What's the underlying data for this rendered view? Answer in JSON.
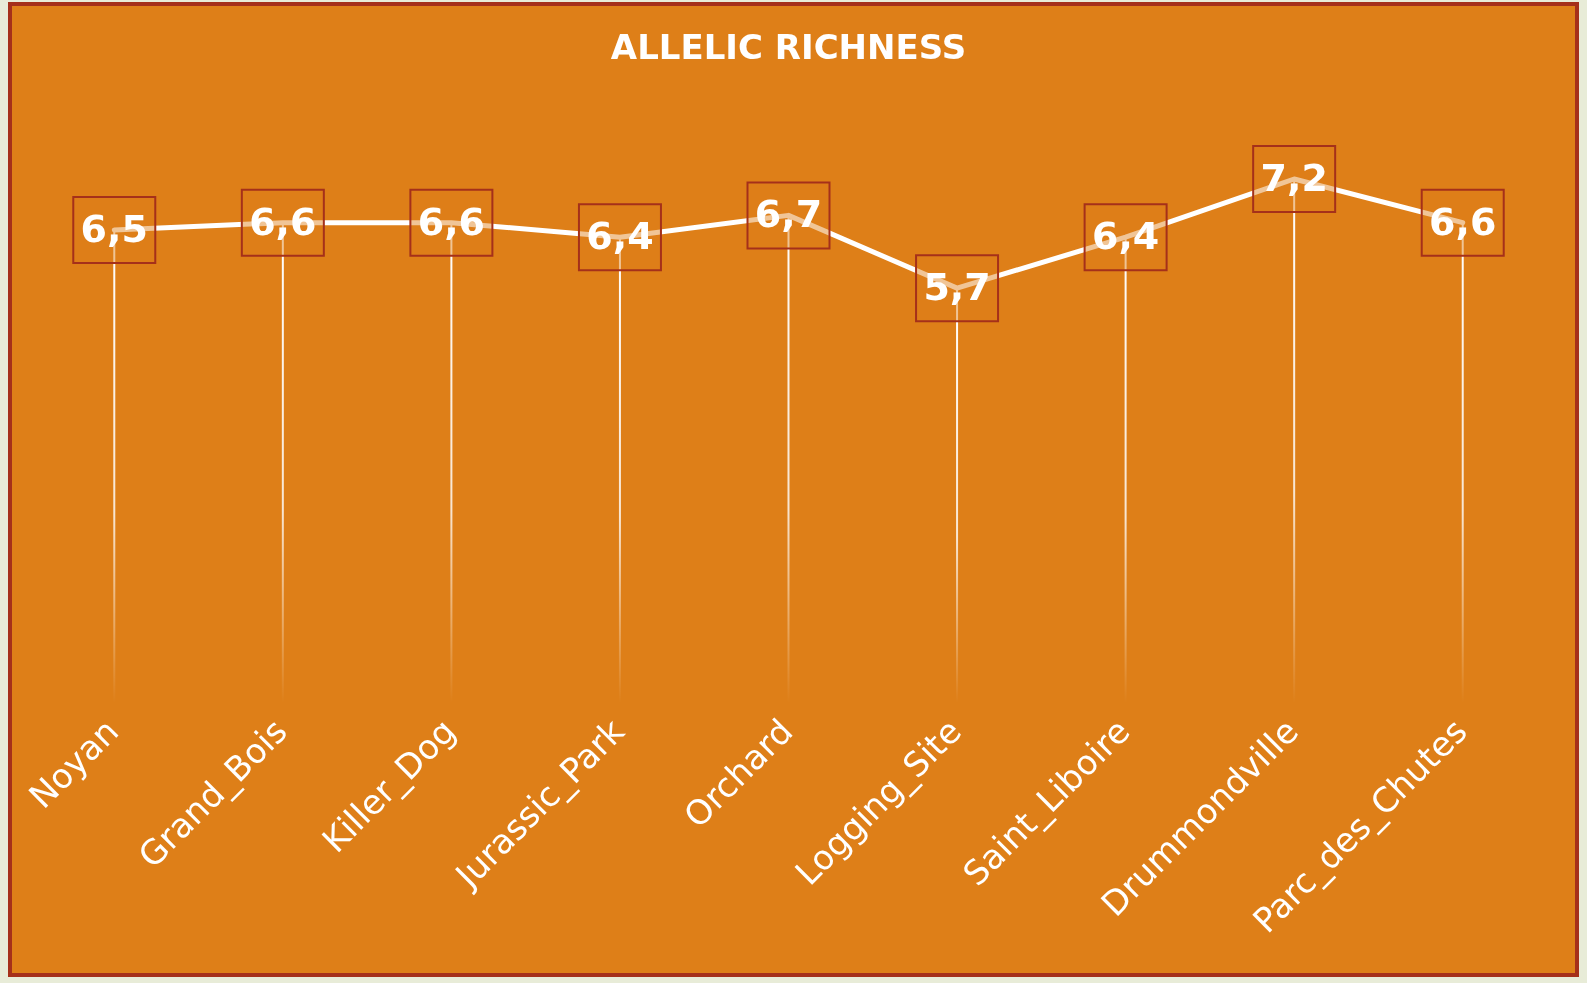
{
  "chart_data": {
    "type": "line",
    "title": "ALLELIC RICHNESS",
    "categories": [
      "Noyan",
      "Grand_Bois",
      "Killer_Dog",
      "Jurassic_Park",
      "Orchard",
      "Logging_Site",
      "Saint_Liboire",
      "Drummondville",
      "Parc_des_Chutes"
    ],
    "series": [
      {
        "color": "#ffffff",
        "values": [
          6.5,
          6.6,
          6.6,
          6.4,
          6.7,
          5.7,
          6.4,
          7.2,
          6.6
        ],
        "value_labels": [
          "6,5",
          "6,6",
          "6,6",
          "6,4",
          "6,7",
          "5,7",
          "6,4",
          "7,2",
          "6,6"
        ]
      }
    ],
    "tick_labels": "x",
    "grid": "x",
    "legend": false,
    "line_style": "solid"
  }
}
